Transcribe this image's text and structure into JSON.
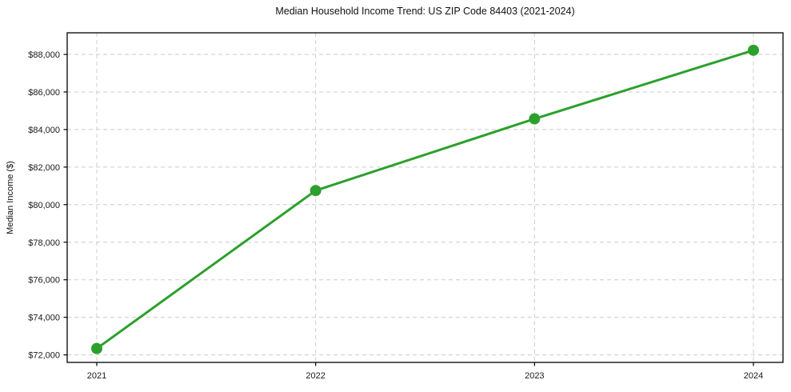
{
  "chart_data": {
    "type": "line",
    "title": "Median Household Income Trend: US ZIP Code 84403 (2021-2024)",
    "xlabel": "",
    "ylabel": "Median Income ($)",
    "categories": [
      "2021",
      "2022",
      "2023",
      "2024"
    ],
    "series": [
      {
        "name": "Median Household Income",
        "values": [
          72340,
          80750,
          84570,
          88220
        ]
      }
    ],
    "yticks": [
      72000,
      74000,
      76000,
      78000,
      80000,
      82000,
      84000,
      86000,
      88000
    ],
    "ytick_labels": [
      "$72,000",
      "$74,000",
      "$76,000",
      "$78,000",
      "$80,000",
      "$82,000",
      "$84,000",
      "$86,000",
      "$88,000"
    ],
    "ylim": [
      71600,
      89150
    ],
    "grid": "both",
    "grid_style": "dashed",
    "legend_position": "none",
    "colors": {
      "line": "#2ca02c",
      "marker": "#2ca02c",
      "grid": "#cccccc",
      "spine": "#000000",
      "tick_label": "#1a1a1a"
    }
  }
}
